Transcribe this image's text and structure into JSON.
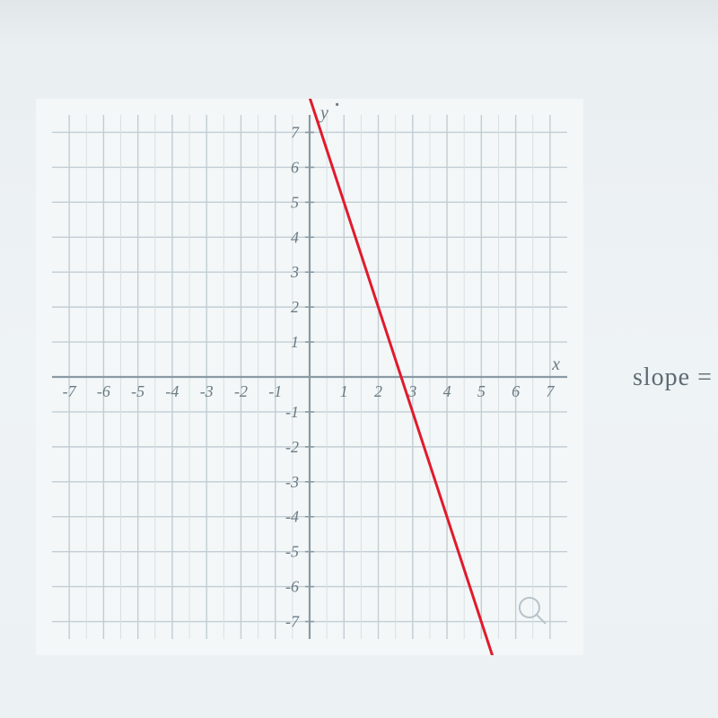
{
  "chart": {
    "type": "line",
    "title": "",
    "xmin": -7.5,
    "xmax": 7.5,
    "ymin": -7.5,
    "ymax": 7.5,
    "xtick_step": 1,
    "ytick_step": 1,
    "xticks": [
      -7,
      -6,
      -5,
      -4,
      -3,
      -2,
      -1,
      1,
      2,
      3,
      4,
      5,
      6,
      7
    ],
    "yticks": [
      -7,
      -6,
      -5,
      -4,
      -3,
      -2,
      -1,
      1,
      2,
      3,
      4,
      5,
      6,
      7
    ],
    "xlabel": "x",
    "ylabel": "y",
    "tick_fontsize": 18,
    "axis_label_fontsize": 20,
    "grid_color": "#c2cdd3",
    "faint_grid_color": "#d8e0e4",
    "axis_color": "#8a9aa3",
    "axis_width": 2.2,
    "grid_width": 1.4,
    "background_color": "#f3f7f8",
    "line": {
      "color": "#e11a2c",
      "width": 3,
      "p1": {
        "x": 0.0,
        "y": 8.0
      },
      "p2": {
        "x": 5.33,
        "y": -8.0
      }
    },
    "visible_points_hint": [
      {
        "x": 0.333,
        "y": 7
      },
      {
        "x": 2.667,
        "y": 0
      },
      {
        "x": 5.0,
        "y": -7
      }
    ]
  },
  "slope_prompt": "slope ="
}
